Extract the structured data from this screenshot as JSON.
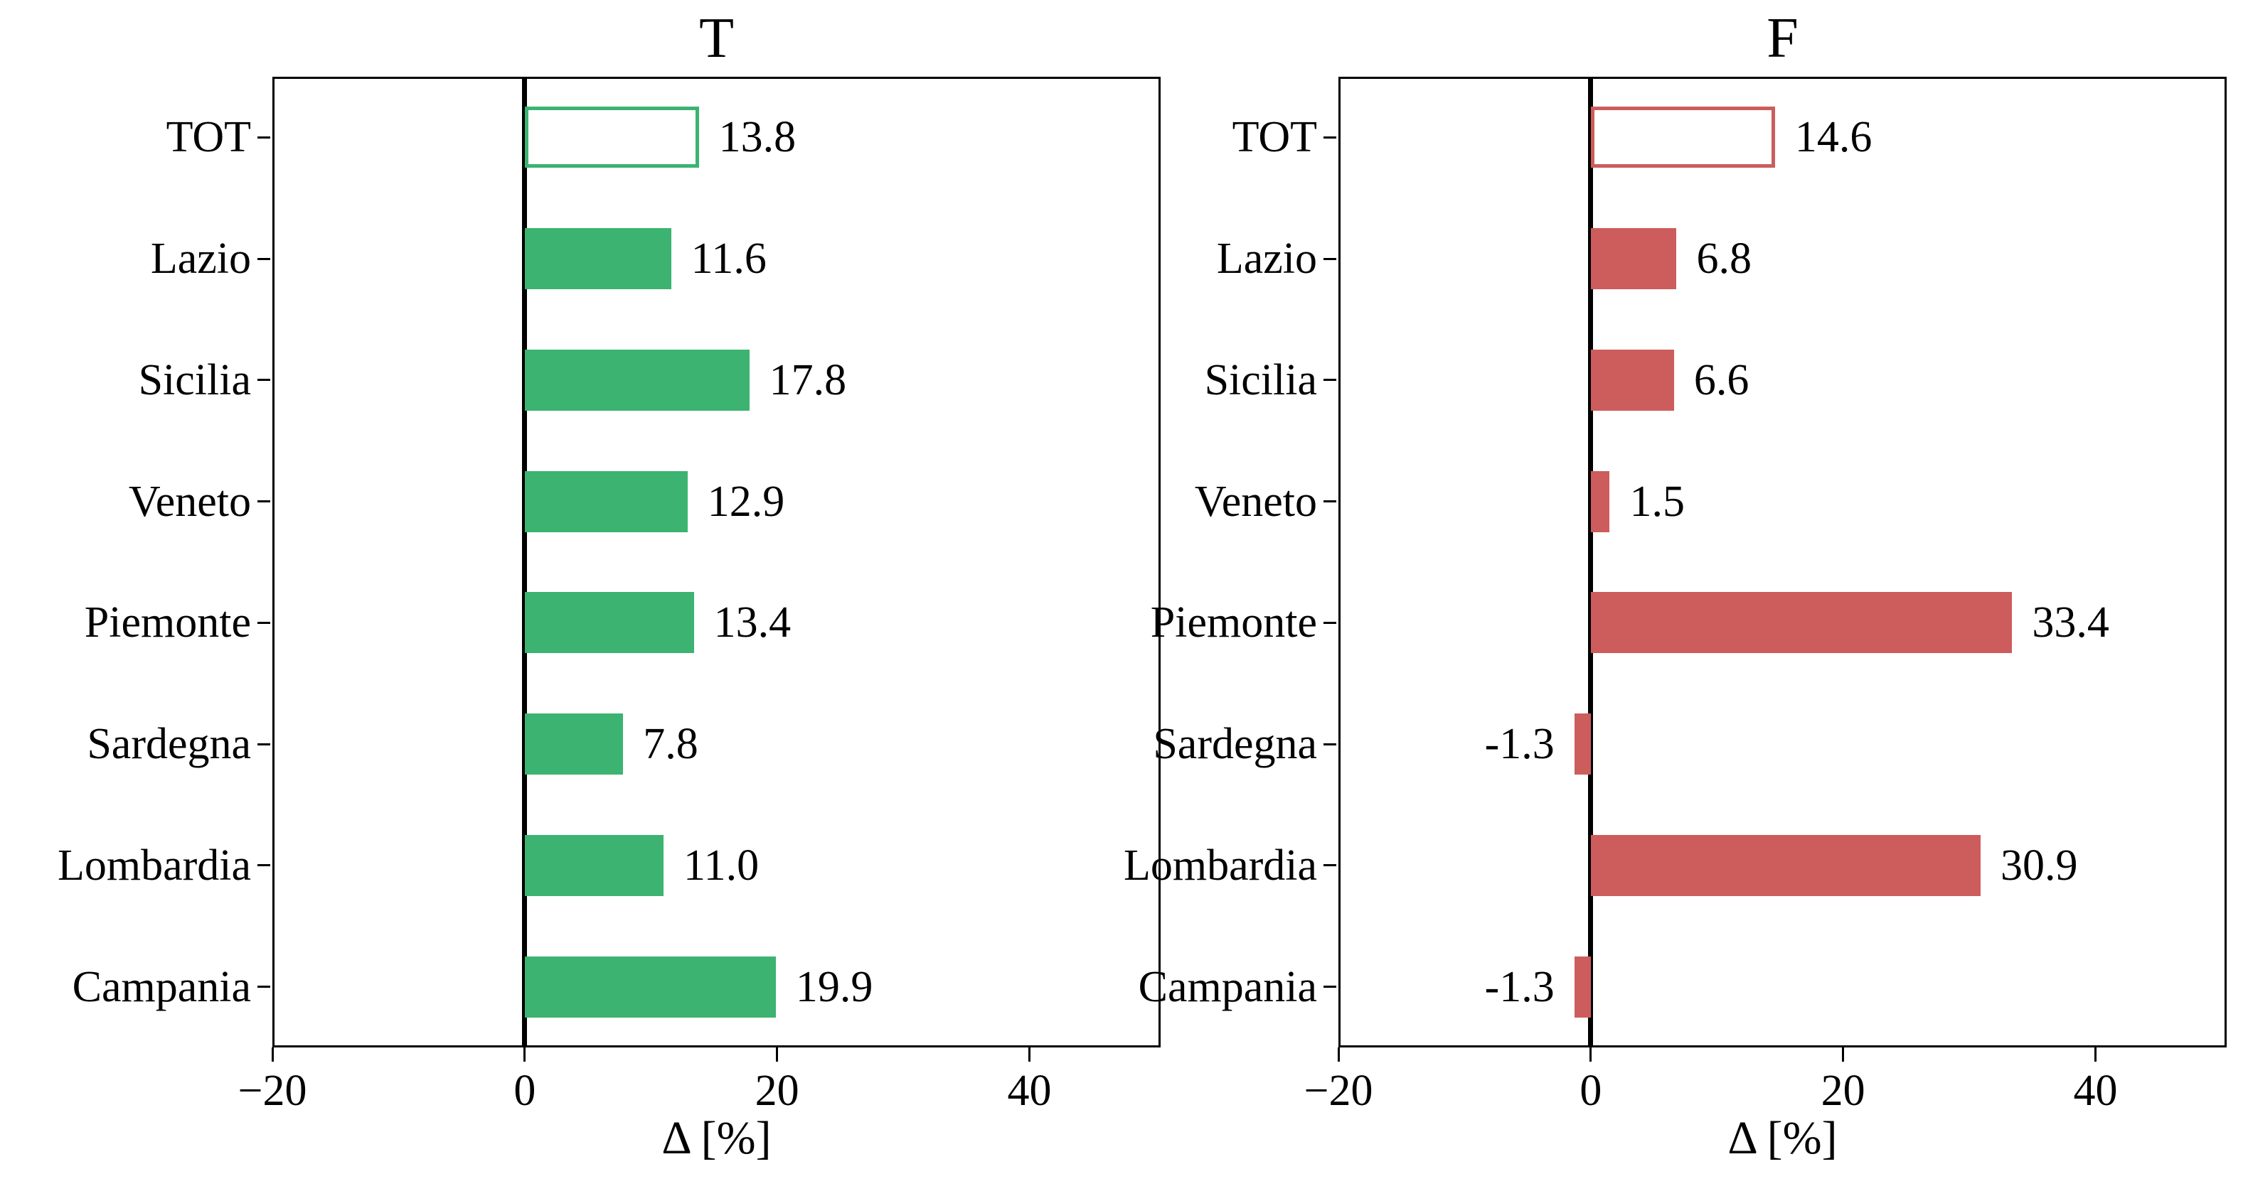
{
  "chart_data": [
    {
      "type": "bar",
      "orientation": "horizontal",
      "title": "T",
      "xlabel": "Δ [%]",
      "categories": [
        "TOT",
        "Lazio",
        "Sicilia",
        "Veneto",
        "Piemonte",
        "Sardegna",
        "Lombardia",
        "Campania"
      ],
      "values": [
        13.8,
        11.6,
        17.8,
        12.9,
        13.4,
        7.8,
        11.0,
        19.9
      ],
      "value_labels": [
        "13.8",
        "11.6",
        "17.8",
        "12.9",
        "13.4",
        "7.8",
        "11.0",
        "19.9"
      ],
      "bar_color": "#3cb371",
      "outline_only_rows": [
        "TOT"
      ],
      "xlim": [
        -20,
        50.4
      ],
      "xticks": [
        -20,
        0,
        20,
        40
      ],
      "xtick_labels": [
        "−20",
        "0",
        "20",
        "40"
      ],
      "zero_line": true,
      "grid": false,
      "legend": null
    },
    {
      "type": "bar",
      "orientation": "horizontal",
      "title": "F",
      "xlabel": "Δ [%]",
      "categories": [
        "TOT",
        "Lazio",
        "Sicilia",
        "Veneto",
        "Piemonte",
        "Sardegna",
        "Lombardia",
        "Campania"
      ],
      "values": [
        14.6,
        6.8,
        6.6,
        1.5,
        33.4,
        -1.3,
        30.9,
        -1.3
      ],
      "value_labels": [
        "14.6",
        "6.8",
        "6.6",
        "1.5",
        "33.4",
        "-1.3",
        "30.9",
        "-1.3"
      ],
      "bar_color": "#cd5c5c",
      "outline_only_rows": [
        "TOT"
      ],
      "xlim": [
        -20,
        50.4
      ],
      "xticks": [
        -20,
        0,
        20,
        40
      ],
      "xtick_labels": [
        "−20",
        "0",
        "20",
        "40"
      ],
      "zero_line": true,
      "grid": false,
      "legend": null
    }
  ],
  "colors": {
    "left_bars": "#3cb371",
    "right_bars": "#cd5c5c",
    "axis": "#000000",
    "background": "#ffffff"
  }
}
